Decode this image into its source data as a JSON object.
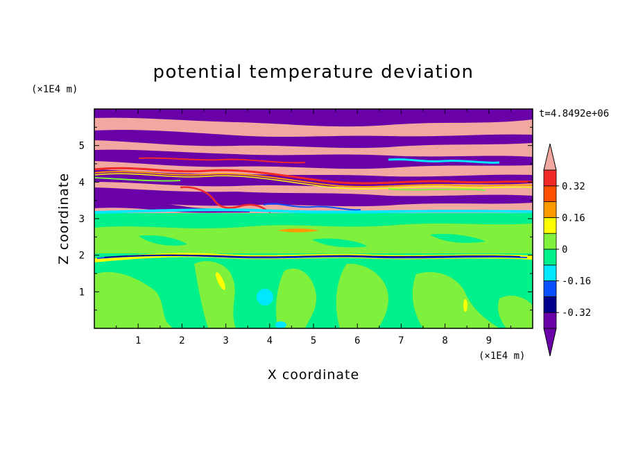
{
  "chart_data": {
    "type": "heatmap",
    "title": "potential temperature deviation",
    "xlabel": "X coordinate",
    "ylabel": "Z coordinate",
    "x_unit": "(×1E4 m)",
    "y_unit": "(×1E4 m)",
    "time_label": "t=4.8492e+06",
    "xlim": [
      0,
      10
    ],
    "ylim": [
      0,
      6
    ],
    "x_ticks": [
      "1",
      "2",
      "3",
      "4",
      "5",
      "6",
      "7",
      "8",
      "9"
    ],
    "y_ticks": [
      "1",
      "2",
      "3",
      "4",
      "5"
    ],
    "colorbar": {
      "levels": [
        -0.4,
        -0.32,
        -0.24,
        -0.16,
        -0.08,
        0,
        0.08,
        0.16,
        0.24,
        0.32,
        0.4
      ],
      "tick_labels": [
        "0.32",
        "0.16",
        "0",
        "-0.16",
        "-0.32"
      ],
      "tick_values": [
        0.32,
        0.16,
        0,
        -0.16,
        -0.32
      ],
      "colors_low_to_high": [
        "#6a00a8",
        "#00008c",
        "#0a50ff",
        "#00e8ff",
        "#00f08c",
        "#7ff03c",
        "#ffff00",
        "#ff9900",
        "#ff5000",
        "#f02828"
      ],
      "under_color": "#6a00a8",
      "over_color": "#f0a8a0"
    },
    "regions": [
      {
        "z_range": [
          0,
          1.95
        ],
        "description_value": "near 0 (-0.08 to 0.08), mostly -0.08 to 0 with 0 to 0.08 patches"
      },
      {
        "z_range": [
          1.95,
          2.05
        ],
        "description_value": "thin band of -0.32 to -0.24"
      },
      {
        "z_range": [
          2.05,
          3.2
        ],
        "description_value": "-0.08 to 0.08"
      },
      {
        "z_range": [
          3.2,
          6.0
        ],
        "description_value": "alternating layers above 0.4 and below -0.4"
      }
    ]
  }
}
